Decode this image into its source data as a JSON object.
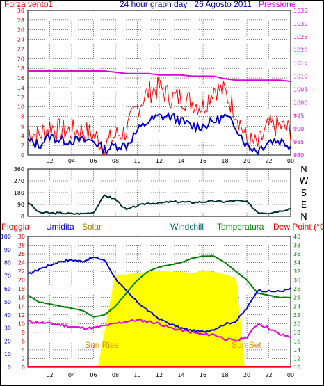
{
  "colors": {
    "wind_avg": "#0000cc",
    "wind_gust": "#ff0000",
    "pressure": "#e000e0",
    "direction": "#003030",
    "rain": "#ff0000",
    "humidity": "#0000cc",
    "solar": "#ffff00",
    "windchill": "#006060",
    "temperature": "#008000",
    "dewpoint": "#e000e0",
    "sun_label": "#e09000",
    "title": "#0000a0",
    "grid": "#000000"
  },
  "top_chart": {
    "title": "24 hour graph day : 26 Agosto 2011",
    "left_label": "Forza vento1",
    "right_label": "Pressione",
    "left_ticks": [
      "0",
      "2",
      "4",
      "6",
      "8",
      "10",
      "12",
      "14",
      "16",
      "18",
      "20",
      "22",
      "24",
      "26",
      "28",
      "30"
    ],
    "right_ticks": [
      "980",
      "985",
      "990",
      "995",
      "1000",
      "1005",
      "1010",
      "1015",
      "1020",
      "1025",
      "1030",
      "1035"
    ],
    "x_ticks": [
      "02",
      "04",
      "06",
      "08",
      "10",
      "12",
      "14",
      "16",
      "18",
      "20",
      "22",
      "00"
    ]
  },
  "mid_chart": {
    "y_ticks": [
      "0",
      "90",
      "180",
      "270",
      "360"
    ],
    "compass": [
      "N",
      "W",
      "S",
      "E",
      "N"
    ],
    "x_ticks": []
  },
  "bottom_chart": {
    "labels": {
      "rain": "Pioggia",
      "humidity": "Umidita",
      "solar": "Solar",
      "windchill": "Windchill",
      "temperature": "Temperatura",
      "dewpoint": "Dew Point (°C)"
    },
    "humidity_ticks": [
      "0",
      "10",
      "20",
      "30",
      "40",
      "50",
      "60",
      "70",
      "80",
      "90",
      "100"
    ],
    "rain_ticks": [
      "0",
      "2",
      "4",
      "6",
      "8",
      "10",
      "12",
      "14",
      "16",
      "18",
      "20",
      "22",
      "24",
      "26",
      "28",
      "30"
    ],
    "temp_ticks": [
      "10",
      "12",
      "14",
      "16",
      "18",
      "20",
      "22",
      "24",
      "26",
      "28",
      "30",
      "32",
      "34",
      "36",
      "38",
      "40"
    ],
    "x_ticks": [
      "02",
      "04",
      "06",
      "08",
      "10",
      "12",
      "14",
      "16",
      "18",
      "20",
      "22",
      "00"
    ],
    "sunrise_label": "Sun Rise",
    "sunset_label": "Sun Set"
  },
  "chart_data": [
    {
      "type": "line",
      "title": "24 hour graph day : 26 Agosto 2011",
      "xlabel": "",
      "ylabel": "Forza vento1",
      "y2label": "Pressione",
      "x": [
        0,
        1,
        2,
        3,
        4,
        5,
        6,
        7,
        8,
        9,
        10,
        11,
        12,
        13,
        14,
        15,
        16,
        17,
        18,
        19,
        20,
        21,
        22,
        23,
        24
      ],
      "ylim": [
        0,
        30
      ],
      "y2lim": [
        980,
        1035
      ],
      "series": [
        {
          "name": "Forza vento1",
          "axis": "left",
          "values": [
            3,
            2,
            4,
            3,
            3,
            3,
            3,
            1,
            2,
            2,
            5,
            7,
            8,
            8,
            7,
            6,
            6,
            7,
            8,
            6,
            2,
            1,
            3,
            3,
            2
          ]
        },
        {
          "name": "gust",
          "axis": "left",
          "values": [
            5,
            4,
            6,
            5,
            5,
            5,
            4,
            2,
            4,
            5,
            10,
            13,
            14,
            12,
            12,
            11,
            10,
            14,
            13,
            9,
            3,
            2,
            6,
            6,
            5
          ]
        },
        {
          "name": "Pressione",
          "axis": "right",
          "values": [
            1012,
            1012,
            1012,
            1012,
            1012,
            1012,
            1012,
            1012,
            1011.5,
            1011,
            1011,
            1011,
            1010.5,
            1010.5,
            1010.5,
            1010,
            1010,
            1010,
            1009,
            1008.5,
            1008.5,
            1008.5,
            1008.5,
            1008.5,
            1008
          ]
        }
      ]
    },
    {
      "type": "line",
      "title": "",
      "xlabel": "",
      "ylabel": "",
      "x": [
        0,
        1,
        2,
        3,
        4,
        5,
        6,
        7,
        8,
        9,
        10,
        11,
        12,
        13,
        14,
        15,
        16,
        17,
        18,
        19,
        20,
        21,
        22,
        23,
        24
      ],
      "ylim": [
        0,
        360
      ],
      "series": [
        {
          "name": "",
          "values": [
            110,
            30,
            25,
            25,
            20,
            20,
            30,
            160,
            130,
            50,
            80,
            100,
            100,
            110,
            110,
            105,
            110,
            115,
            110,
            120,
            110,
            30,
            25,
            40,
            60
          ]
        }
      ]
    },
    {
      "type": "line",
      "title": "",
      "xlabel": "",
      "ylabel": "Umidita",
      "x": [
        0,
        1,
        2,
        3,
        4,
        5,
        6,
        7,
        8,
        9,
        10,
        11,
        12,
        13,
        14,
        15,
        16,
        17,
        18,
        19,
        20,
        21,
        22,
        23,
        24
      ],
      "ylim": [
        0,
        100
      ],
      "temp_lim": [
        10,
        40
      ],
      "rain_lim": [
        0,
        30
      ],
      "series": [
        {
          "name": "Umidita",
          "axis": "humidity",
          "values": [
            71,
            75,
            78,
            81,
            82,
            81,
            84,
            82,
            68,
            58,
            50,
            43,
            37,
            33,
            30,
            28,
            27,
            29,
            33,
            35,
            45,
            59,
            58,
            58,
            60
          ]
        },
        {
          "name": "Temperatura",
          "axis": "temp",
          "values": [
            26.5,
            25,
            24.5,
            24,
            23.5,
            23,
            21.5,
            22,
            24,
            27,
            30,
            32,
            33,
            33.5,
            34,
            35,
            35.5,
            35.5,
            34,
            32,
            30,
            27,
            26.5,
            26,
            26
          ]
        },
        {
          "name": "Dew Point (°C)",
          "axis": "temp",
          "values": [
            20.5,
            20.3,
            20,
            19.7,
            19.3,
            19,
            19,
            19.5,
            20,
            20.5,
            20.8,
            20.5,
            20,
            19,
            18.5,
            18,
            17.5,
            17.5,
            16.5,
            16,
            17,
            20,
            19,
            17.5,
            17
          ]
        },
        {
          "name": "Solar",
          "axis": "humidity",
          "values": [
            0,
            0,
            0,
            0,
            0,
            0,
            0,
            0,
            70,
            71,
            72,
            73,
            74,
            73,
            73,
            72,
            74,
            73,
            71,
            68,
            0,
            0,
            0,
            0,
            0
          ]
        },
        {
          "name": "Pioggia",
          "axis": "rain",
          "values": [
            0,
            0,
            0,
            0,
            0,
            0,
            0,
            0,
            0,
            0,
            0,
            0,
            0,
            0,
            0,
            0,
            0,
            0,
            0,
            0,
            0,
            0,
            0,
            0,
            0
          ]
        }
      ]
    }
  ]
}
